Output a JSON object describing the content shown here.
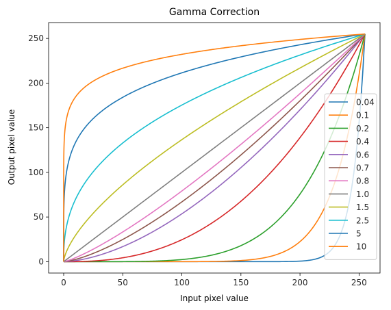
{
  "chart_data": {
    "type": "line",
    "title": "Gamma Correction",
    "xlabel": "Input pixel value",
    "ylabel": "Output pixel value",
    "xlim": [
      -12.75,
      267.75
    ],
    "ylim": [
      -12.75,
      267.75
    ],
    "xticks": [
      "0",
      "50",
      "100",
      "150",
      "200",
      "250"
    ],
    "yticks": [
      "0",
      "50",
      "100",
      "150",
      "200",
      "250"
    ],
    "x_domain": [
      0,
      255
    ],
    "y_formula": "255 * (x / 255) ^ (1 / gamma)",
    "grid": false,
    "legend_position": "center-right",
    "series": [
      {
        "name": "0.04",
        "gamma": 0.04,
        "color": "#1f77b4"
      },
      {
        "name": "0.1",
        "gamma": 0.1,
        "color": "#ff7f0e"
      },
      {
        "name": "0.2",
        "gamma": 0.2,
        "color": "#2ca02c"
      },
      {
        "name": "0.4",
        "gamma": 0.4,
        "color": "#d62728"
      },
      {
        "name": "0.6",
        "gamma": 0.6,
        "color": "#9467bd"
      },
      {
        "name": "0.7",
        "gamma": 0.7,
        "color": "#8c564b"
      },
      {
        "name": "0.8",
        "gamma": 0.8,
        "color": "#e377c2"
      },
      {
        "name": "1.0",
        "gamma": 1.0,
        "color": "#7f7f7f"
      },
      {
        "name": "1.5",
        "gamma": 1.5,
        "color": "#bcbd22"
      },
      {
        "name": "2.5",
        "gamma": 2.5,
        "color": "#17becf"
      },
      {
        "name": "5",
        "gamma": 5,
        "color": "#1f77b4"
      },
      {
        "name": "10",
        "gamma": 10,
        "color": "#ff7f0e"
      }
    ]
  }
}
